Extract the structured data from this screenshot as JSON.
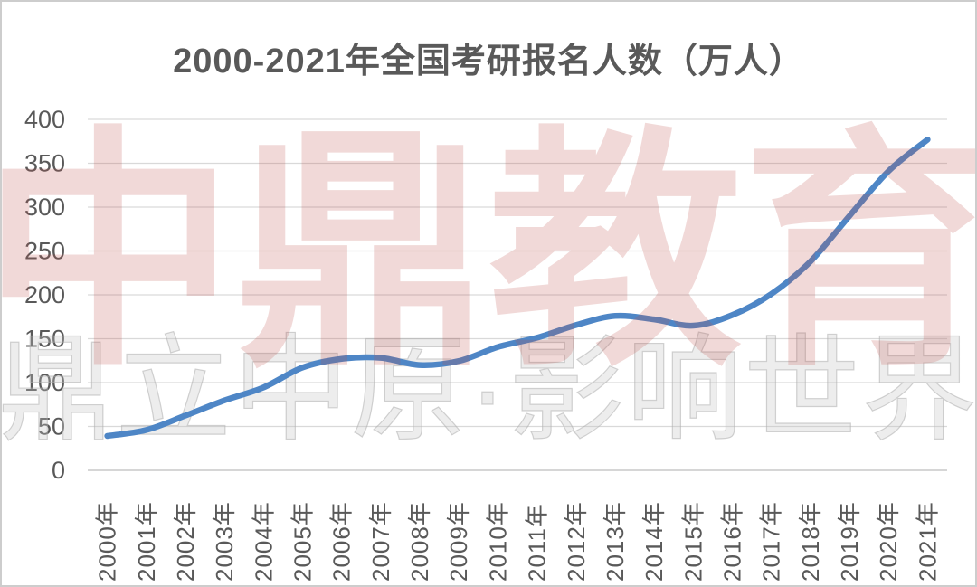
{
  "title": "2000-2021年全国考研报名人数（万人）",
  "watermark": {
    "primary": "中鼎教育",
    "secondary": "鼎立中原·影响世界"
  },
  "colors": {
    "line": "#4e86c6",
    "line_fade_top": "#aecdea",
    "grid": "#d9d9d9",
    "axis_line": "#c9c9c9",
    "axis_text": "#595959",
    "title_text": "#595959",
    "watermark_pink": "rgba(192,80,77,0.22)",
    "watermark_gray": "#c3c3c3"
  },
  "chart_data": {
    "type": "line",
    "title": "2000-2021年全国考研报名人数（万人）",
    "categories": [
      "2000年",
      "2001年",
      "2002年",
      "2003年",
      "2004年",
      "2005年",
      "2006年",
      "2007年",
      "2008年",
      "2009年",
      "2010年",
      "2011年",
      "2012年",
      "2013年",
      "2014年",
      "2015年",
      "2016年",
      "2017年",
      "2018年",
      "2019年",
      "2020年",
      "2021年"
    ],
    "values": [
      39.2,
      46,
      62.4,
      79.7,
      94.5,
      117.2,
      127.1,
      128.2,
      120,
      124.6,
      140.6,
      151.1,
      165.6,
      176,
      172,
      164.9,
      177,
      201,
      238,
      290,
      341,
      377
    ],
    "xlabel": "",
    "ylabel": "",
    "ylim": [
      0,
      450
    ],
    "yticks": [
      0,
      50,
      100,
      150,
      200,
      250,
      300,
      350,
      400
    ],
    "grid": true,
    "legend": false,
    "smooth": true,
    "spike_at_last_point": true
  }
}
